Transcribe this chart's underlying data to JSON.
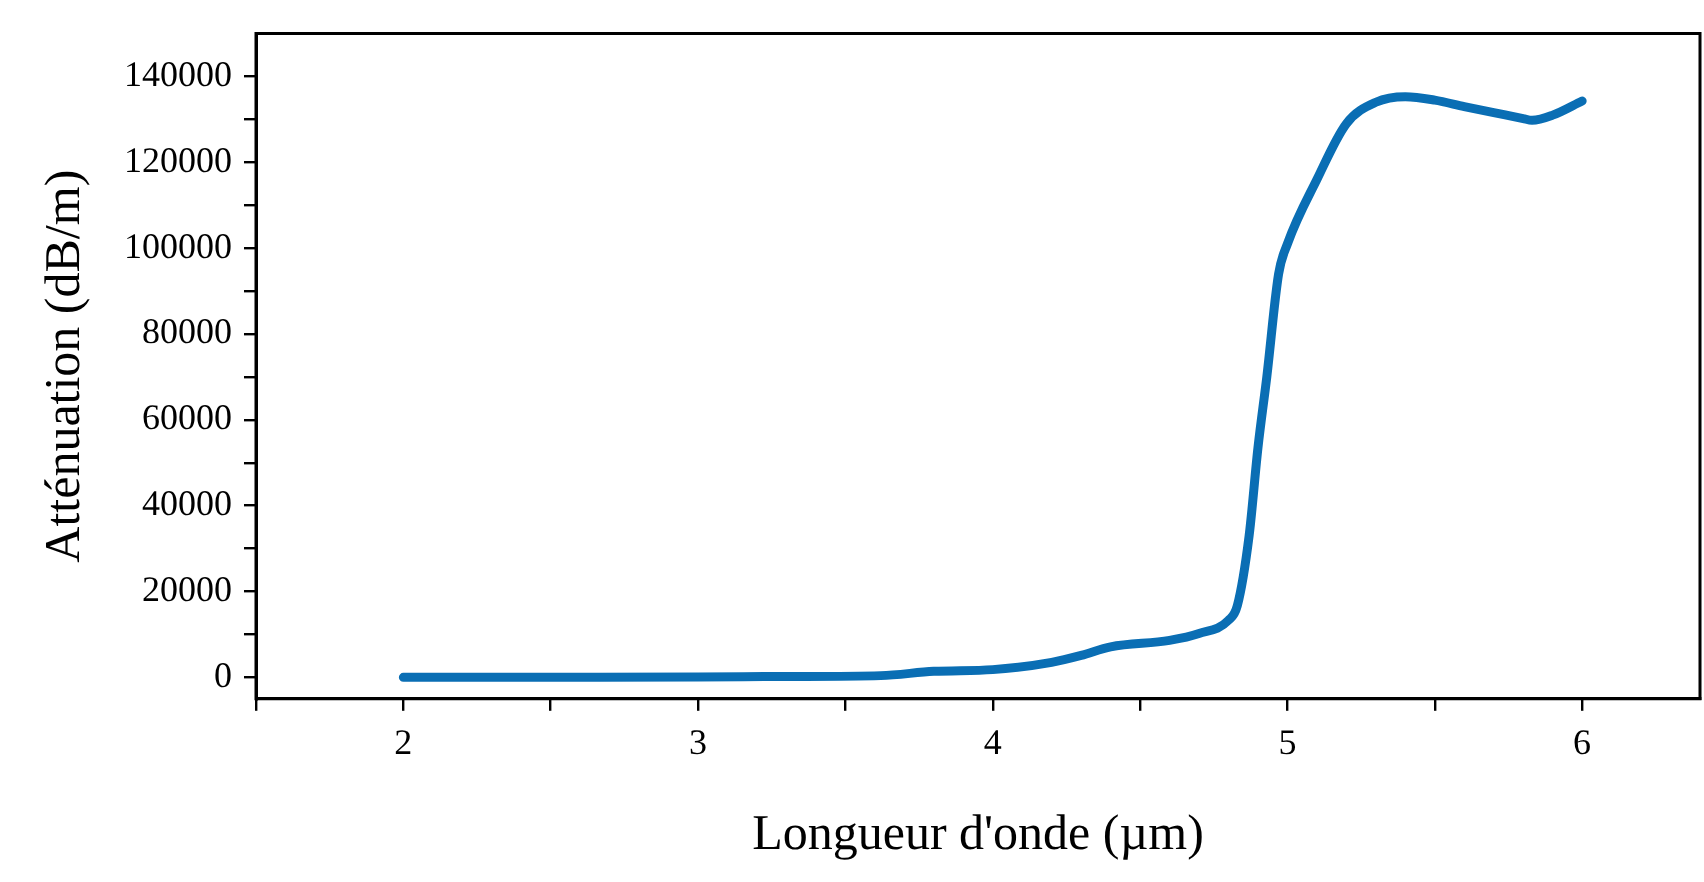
{
  "chart_data": {
    "type": "line",
    "xlabel": "Longueur d'onde (µm)",
    "ylabel": "Atténuation (dB/m)",
    "x": [
      2,
      2.5,
      3,
      3.3,
      3.62,
      3.8,
      4.0,
      4.2,
      4.3,
      4.4,
      4.6,
      4.7,
      4.8,
      4.83,
      4.87,
      4.9,
      4.93,
      4.97,
      5.0,
      5.1,
      5.2,
      5.3,
      5.4,
      5.5,
      5.6,
      5.7,
      5.8,
      5.83,
      5.9,
      6.0
    ],
    "values": [
      0,
      0,
      100,
      200,
      400,
      1400,
      1800,
      3500,
      5100,
      7100,
      8600,
      10200,
      13300,
      16700,
      33000,
      53500,
      70000,
      94000,
      101000,
      116000,
      129000,
      134000,
      135300,
      134500,
      133000,
      131600,
      130200,
      129800,
      131000,
      134300
    ],
    "color": "#0a6eb4",
    "line_style": "solid",
    "marker": "none",
    "grid": false,
    "legend": false,
    "xlim": [
      1.5,
      6.4
    ],
    "xticks": [
      {
        "value": 1.5,
        "label": null
      },
      2,
      {
        "value": 2.5,
        "label": null
      },
      3,
      {
        "value": 3.5,
        "label": null
      },
      4,
      {
        "value": 4.5,
        "label": null
      },
      5,
      {
        "value": 5.5,
        "label": null
      },
      6
    ],
    "ylim": [
      -5000,
      150000
    ],
    "yticks": [
      0,
      {
        "value": 10000,
        "label": null
      },
      20000,
      {
        "value": 30000,
        "label": null
      },
      40000,
      {
        "value": 50000,
        "label": null
      },
      60000,
      {
        "value": 70000,
        "label": null
      },
      80000,
      {
        "value": 90000,
        "label": null
      },
      100000,
      {
        "value": 110000,
        "label": null
      },
      120000,
      {
        "value": 130000,
        "label": null
      },
      140000
    ]
  }
}
